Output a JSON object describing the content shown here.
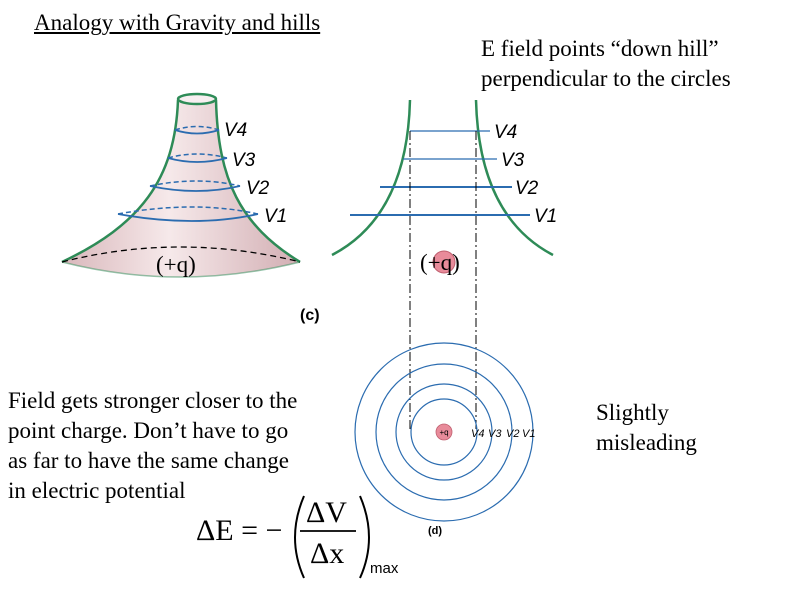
{
  "title": "Analogy with Gravity and hills",
  "efield_note": {
    "line1": "E field points “down hill”",
    "line2": "perpendicular to the circles"
  },
  "field_note": {
    "line1": "Field gets stronger closer to the",
    "line2": "point charge.  Don’t have to go",
    "line3": "as far to have the same change",
    "line4": "in electric potential"
  },
  "slightly_note": {
    "line1": "Slightly",
    "line2": "misleading"
  },
  "diagram_c": {
    "label": "(c)",
    "charge_label": "(+q)",
    "levels": [
      "V4",
      "V3",
      "V2",
      "V1"
    ]
  },
  "diagram_side": {
    "charge_label": "(+q)",
    "levels": [
      "V4",
      "V3",
      "V2",
      "V1"
    ]
  },
  "diagram_d": {
    "label": "(d)",
    "center_label": "+q",
    "levels": [
      "V4",
      "V3",
      "V2",
      "V1"
    ]
  },
  "equation": {
    "lhs": "ΔE = −",
    "numerator": "ΔV",
    "denominator": "Δx",
    "subscript": "max"
  },
  "colors": {
    "hill_outline": "#2e8b57",
    "contour": "#2b6cb0",
    "hill_fill": "#ecd7d9",
    "charge_fill": "#e88b9a"
  }
}
